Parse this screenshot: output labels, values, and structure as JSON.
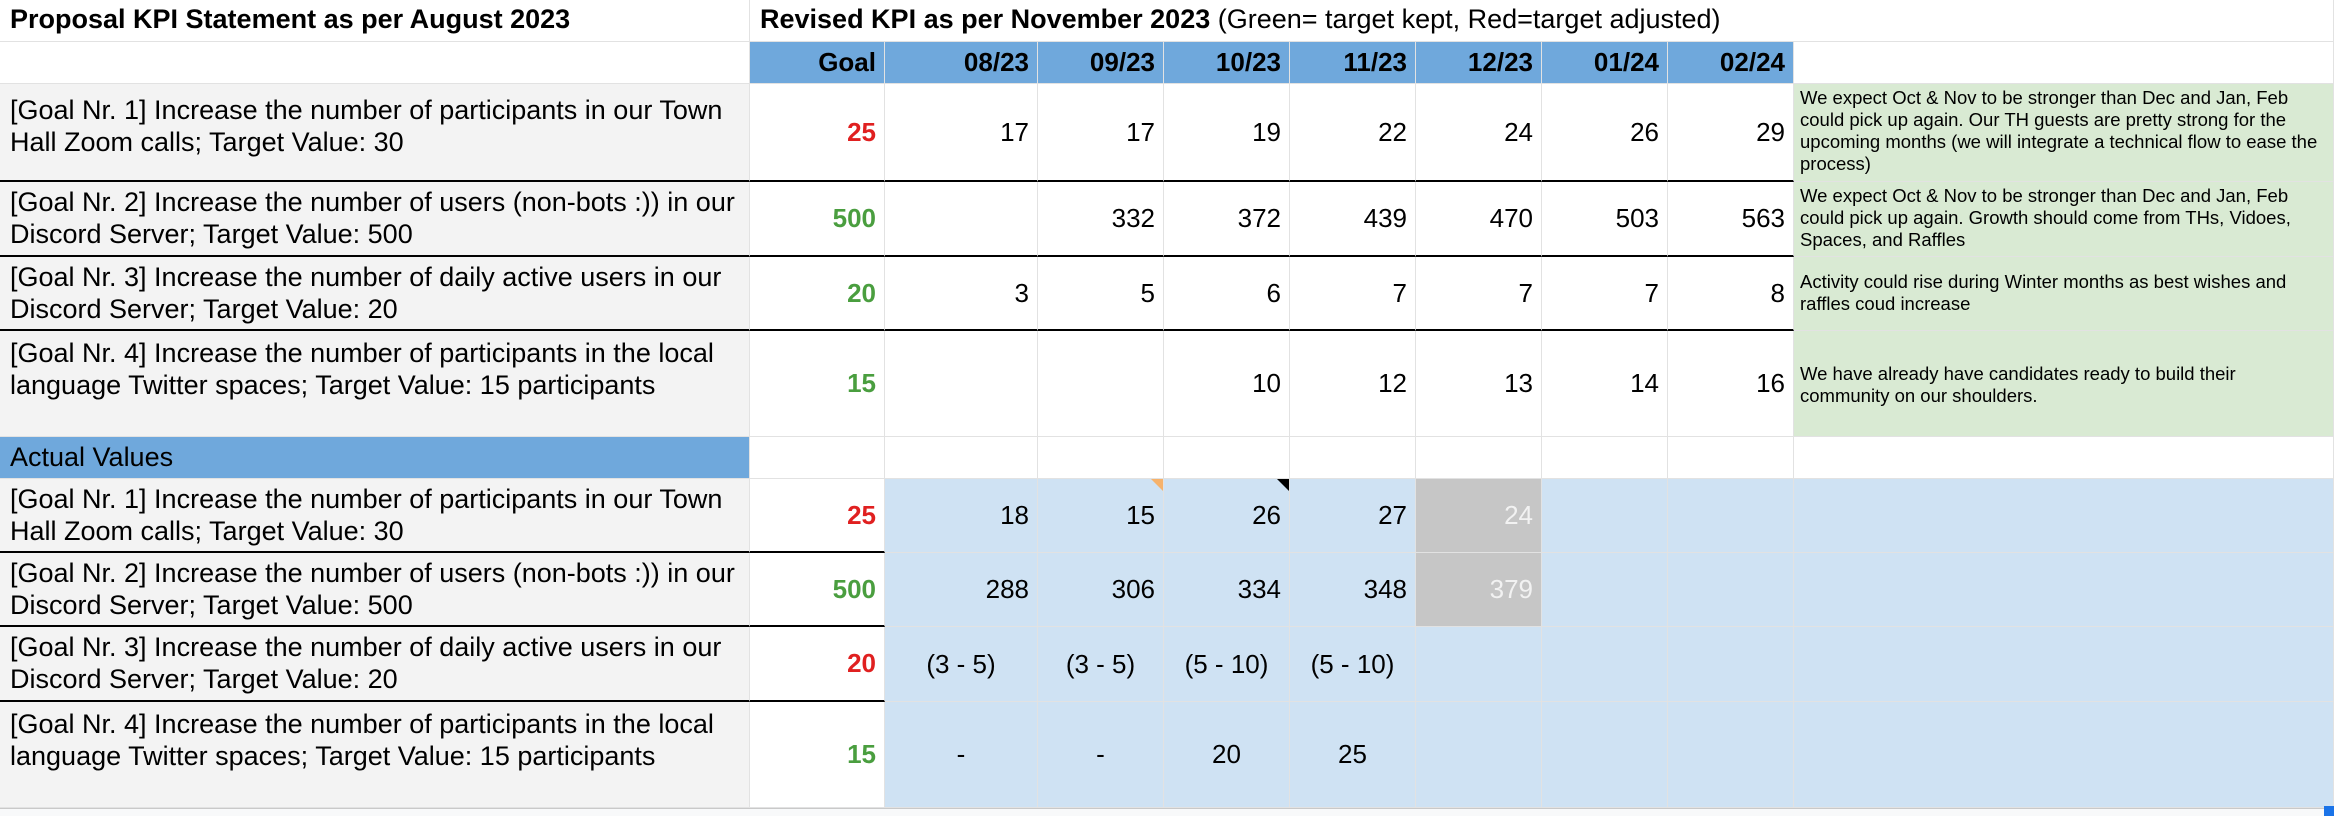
{
  "header": {
    "left_title": "Proposal KPI Statement as per August 2023",
    "right_title_bold": "Revised KPI as per November 2023",
    "right_title_rest": " (Green= target kept, Red=target adjusted)"
  },
  "columns": [
    "Goal",
    "08/23",
    "09/23",
    "10/23",
    "11/23",
    "12/23",
    "01/24",
    "02/24"
  ],
  "revised": [
    {
      "label": "[Goal Nr. 1] Increase the number of participants in our Town Hall Zoom calls; Target Value: 30",
      "goal": "25",
      "goal_color": "#e02020",
      "values": [
        "17",
        "17",
        "19",
        "22",
        "24",
        "26",
        "29"
      ],
      "note": "We expect Oct & Nov to be stronger than Dec and Jan, Feb could pick up again. Our TH guests are pretty strong for the upcoming months (we will integrate a technical flow to ease the process)"
    },
    {
      "label": "[Goal Nr. 2] Increase the number of users (non-bots :)) in our Discord Server; Target Value: 500",
      "goal": "500",
      "goal_color": "#4a9e3f",
      "values": [
        "",
        "332",
        "372",
        "439",
        "470",
        "503",
        "563"
      ],
      "note": "We expect Oct & Nov to be stronger than Dec and Jan, Feb could pick up again. Growth should come from THs, Vidoes, Spaces, and Raffles"
    },
    {
      "label": "[Goal Nr. 3] Increase the number of daily active users in our Discord Server; Target Value: 20",
      "goal": "20",
      "goal_color": "#4a9e3f",
      "values": [
        "3",
        "5",
        "6",
        "7",
        "7",
        "7",
        "8"
      ],
      "note": "Activity could rise during Winter months as best wishes and raffles coud increase"
    },
    {
      "label": "[Goal Nr. 4] Increase the number of participants in the local language Twitter spaces; Target Value: 15 participants",
      "goal": "15",
      "goal_color": "#4a9e3f",
      "values": [
        "",
        "",
        "10",
        "12",
        "13",
        "14",
        "16"
      ],
      "note": "We have already have candidates ready to build their community on our shoulders."
    }
  ],
  "actual_header": "Actual Values",
  "actual": [
    {
      "label": "[Goal Nr. 1] Increase the number of participants in our Town Hall Zoom calls; Target Value: 30",
      "goal": "25",
      "goal_color": "#e02020",
      "values": [
        "18",
        "15",
        "26",
        "27",
        "24",
        "",
        ""
      ]
    },
    {
      "label": "[Goal Nr. 2] Increase the number of users (non-bots :)) in our Discord Server; Target Value: 500",
      "goal": "500",
      "goal_color": "#4a9e3f",
      "values": [
        "288",
        "306",
        "334",
        "348",
        "379",
        "",
        ""
      ]
    },
    {
      "label": "[Goal Nr. 3] Increase the number of daily active users in our Discord Server; Target Value: 20",
      "goal": "20",
      "goal_color": "#e02020",
      "values": [
        "(3 - 5)",
        "(3 - 5)",
        "(5 - 10)",
        "(5 - 10)",
        "",
        "",
        ""
      ]
    },
    {
      "label": "[Goal Nr. 4] Increase the number of participants in the local language Twitter spaces; Target Value: 15 participants",
      "goal": "15",
      "goal_color": "#4a9e3f",
      "values": [
        "-",
        "-",
        "20",
        "25",
        "",
        "",
        ""
      ]
    }
  ],
  "colors": {
    "header_blue": "#6fa8dc",
    "actual_blue": "#cfe2f3",
    "note_green": "#d9ead3",
    "label_grey": "#f3f3f3",
    "estimate_grey": "#c6c6c6"
  }
}
